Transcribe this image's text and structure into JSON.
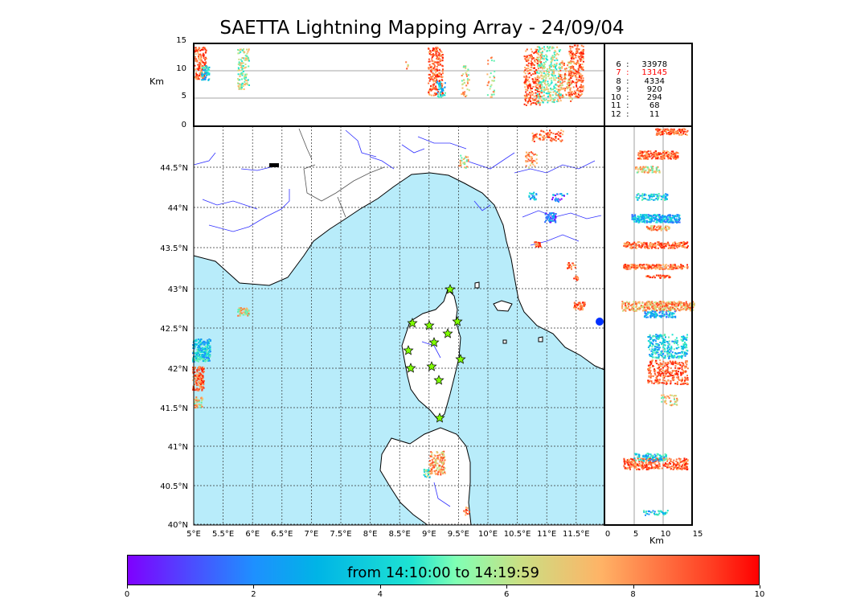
{
  "title": "SAETTA Lightning Mapping Array - 24/09/04",
  "colorbar": {
    "label": "from 14:10:00 to 14:19:59",
    "ticks": [
      "0",
      "2",
      "4",
      "6",
      "8",
      "10"
    ]
  },
  "counts": [
    {
      "level": "6",
      "count": "33978",
      "highlight": false
    },
    {
      "level": "7",
      "count": "13145",
      "highlight": true
    },
    {
      "level": "8",
      "count": "4334",
      "highlight": false
    },
    {
      "level": "9",
      "count": "920",
      "highlight": false
    },
    {
      "level": "10",
      "count": "294",
      "highlight": false
    },
    {
      "level": "11",
      "count": "68",
      "highlight": false
    },
    {
      "level": "12",
      "count": "11",
      "highlight": false
    }
  ],
  "top_panel": {
    "ylabel": "Km",
    "yticks": [
      "15",
      "10",
      "5",
      "0"
    ]
  },
  "right_panel": {
    "xlabel": "Km",
    "xticks": [
      "0",
      "5",
      "10",
      "15"
    ]
  },
  "map": {
    "lon_ticks": [
      "5°E",
      "5.5°E",
      "6°E",
      "6.5°E",
      "7°E",
      "7.5°E",
      "8°E",
      "8.5°E",
      "9°E",
      "9.5°E",
      "10°E",
      "10.5°E",
      "11°E",
      "11.5°E"
    ],
    "lat_ticks": [
      "44.5°N",
      "44°N",
      "43.5°N",
      "43°N",
      "42.5°N",
      "42°N",
      "41.5°N",
      "41°N",
      "40.5°N",
      "40°N"
    ],
    "colors": {
      "sea": "#b8ecfa",
      "land": "#ffffff",
      "coast": "#000000",
      "rivers": "#3030ff",
      "station": "#80ff00"
    }
  }
}
